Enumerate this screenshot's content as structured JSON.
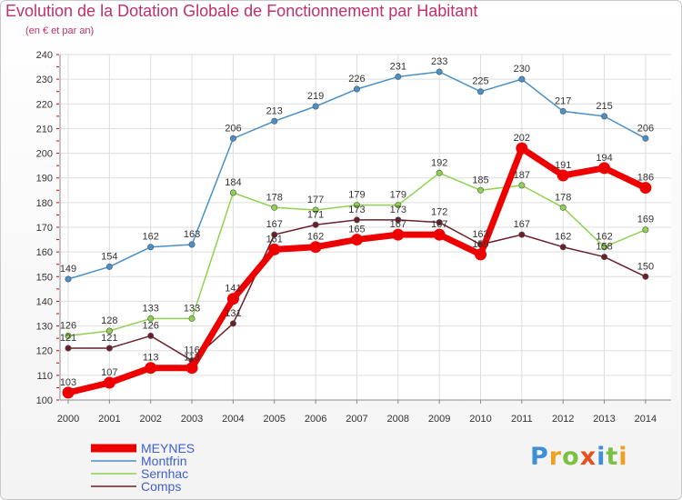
{
  "title": "Evolution de la Dotation Globale de Fonctionnement par Habitant",
  "subtitle": "(en € et par an)",
  "logo": {
    "text": "Proxiti",
    "letters": [
      {
        "ch": "P",
        "color": "#3f8fd6"
      },
      {
        "ch": "r",
        "color": "#f0a020"
      },
      {
        "ch": "o",
        "color": "#7ac043"
      },
      {
        "ch": "x",
        "color": "#e8501e"
      },
      {
        "ch": "i",
        "color": "#3f8fd6"
      },
      {
        "ch": "t",
        "color": "#7ac043"
      },
      {
        "ch": "i",
        "color": "#f0a020"
      }
    ]
  },
  "chart_data": {
    "type": "line",
    "title": "Evolution de la Dotation Globale de Fonctionnement par Habitant",
    "subtitle": "(en € et par an)",
    "xlabel": "",
    "ylabel": "",
    "ylim": [
      100,
      240
    ],
    "yticks": [
      100,
      110,
      120,
      130,
      140,
      150,
      160,
      170,
      180,
      190,
      200,
      210,
      220,
      230,
      240
    ],
    "categories": [
      "2000",
      "2001",
      "2002",
      "2003",
      "2004",
      "2005",
      "2006",
      "2007",
      "2008",
      "2009",
      "2010",
      "2011",
      "2012",
      "2013",
      "2014"
    ],
    "grid": true,
    "legend_position": "bottom-left",
    "series": [
      {
        "name": "MEYNES",
        "color": "#ee0000",
        "thick": true,
        "values": [
          103,
          107,
          113,
          113,
          141,
          161,
          162,
          165,
          167,
          167,
          159,
          202,
          191,
          194,
          186
        ]
      },
      {
        "name": "Montfrin",
        "color": "#4a90c8",
        "thick": false,
        "values": [
          149,
          154,
          162,
          163,
          206,
          213,
          219,
          226,
          231,
          233,
          225,
          230,
          217,
          215,
          206
        ]
      },
      {
        "name": "Sernhac",
        "color": "#8fd14f",
        "thick": false,
        "values": [
          126,
          128,
          133,
          133,
          184,
          178,
          177,
          179,
          179,
          192,
          185,
          187,
          178,
          162,
          169
        ]
      },
      {
        "name": "Comps",
        "color": "#6b1f2a",
        "thick": false,
        "values": [
          121,
          121,
          126,
          116,
          131,
          167,
          171,
          173,
          173,
          172,
          163,
          167,
          162,
          158,
          150
        ]
      }
    ]
  }
}
